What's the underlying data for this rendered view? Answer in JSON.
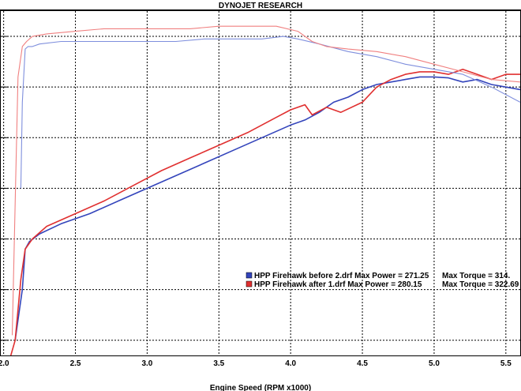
{
  "chart_data": {
    "type": "line",
    "title": "DYNOJET RESEARCH",
    "xlabel": "Engine Speed (RPM x1000)",
    "ylabel": "",
    "xlim": [
      1.98,
      5.6
    ],
    "ylim": [
      0,
      6.8
    ],
    "x_ticks": [
      2.0,
      2.5,
      3.0,
      3.5,
      4.0,
      4.5,
      5.0,
      5.5
    ],
    "x_tick_labels": [
      "2.0",
      "2.5",
      "3.0",
      "3.5",
      "4.0",
      "4.5",
      "5.0",
      "5.5"
    ],
    "y_gridlines": [
      0.3,
      1.3,
      2.3,
      3.3,
      4.3,
      5.3,
      6.3
    ],
    "grid": true,
    "legend_position": "bottom-right",
    "legend": [
      {
        "color": "#3344bb",
        "text": "HPP Firehawk before 2.drf Max Power = 271.25",
        "torque_text": "Max Torque = 314."
      },
      {
        "color": "#e03030",
        "text": "HPP Firehawk after 1.drf Max Power = 280.15",
        "torque_text": "Max Torque = 322.69"
      }
    ],
    "series": [
      {
        "name": "HPP Firehawk before 2.drf (power)",
        "color": "#3344bb",
        "x": [
          2.08,
          2.1,
          2.13,
          2.15,
          2.18,
          2.25,
          2.4,
          2.6,
          2.8,
          3.0,
          3.2,
          3.4,
          3.6,
          3.8,
          4.0,
          4.1,
          4.2,
          4.3,
          4.4,
          4.5,
          4.6,
          4.7,
          4.8,
          4.9,
          5.0,
          5.1,
          5.2,
          5.3,
          5.4,
          5.5,
          5.6
        ],
        "y": [
          0.3,
          0.7,
          1.3,
          2.1,
          2.25,
          2.4,
          2.6,
          2.8,
          3.05,
          3.3,
          3.55,
          3.8,
          4.05,
          4.3,
          4.55,
          4.65,
          4.8,
          5.0,
          5.1,
          5.25,
          5.35,
          5.4,
          5.45,
          5.5,
          5.5,
          5.48,
          5.4,
          5.45,
          5.35,
          5.3,
          5.25
        ]
      },
      {
        "name": "HPP Firehawk after 1.drf (power)",
        "color": "#e03030",
        "x": [
          2.05,
          2.08,
          2.1,
          2.12,
          2.15,
          2.2,
          2.3,
          2.5,
          2.7,
          2.9,
          3.1,
          3.3,
          3.5,
          3.7,
          3.9,
          4.0,
          4.1,
          4.15,
          4.25,
          4.35,
          4.5,
          4.6,
          4.7,
          4.8,
          4.9,
          5.0,
          5.1,
          5.2,
          5.3,
          5.4,
          5.5,
          5.6
        ],
        "y": [
          0.0,
          0.3,
          0.9,
          1.5,
          2.1,
          2.3,
          2.55,
          2.8,
          3.05,
          3.35,
          3.65,
          3.9,
          4.15,
          4.4,
          4.7,
          4.85,
          4.95,
          4.75,
          4.9,
          4.8,
          5.0,
          5.3,
          5.45,
          5.55,
          5.6,
          5.6,
          5.55,
          5.65,
          5.55,
          5.45,
          5.55,
          5.55
        ]
      },
      {
        "name": "HPP Firehawk before 2.drf (torque)",
        "color": "#7f8fdd",
        "x": [
          2.12,
          2.13,
          2.15,
          2.17,
          2.2,
          2.25,
          2.4,
          2.6,
          2.8,
          3.0,
          3.2,
          3.4,
          3.6,
          3.8,
          3.95,
          4.05,
          4.2,
          4.4,
          4.6,
          4.8,
          5.0,
          5.2,
          5.4,
          5.6
        ],
        "y": [
          3.3,
          5.0,
          6.05,
          6.1,
          6.1,
          6.15,
          6.2,
          6.2,
          6.2,
          6.2,
          6.2,
          6.25,
          6.25,
          6.25,
          6.3,
          6.25,
          6.15,
          6.0,
          5.9,
          5.75,
          5.65,
          5.55,
          5.3,
          5.0
        ]
      },
      {
        "name": "HPP Firehawk after 1.drf (torque)",
        "color": "#f08080",
        "x": [
          2.06,
          2.08,
          2.1,
          2.13,
          2.16,
          2.2,
          2.3,
          2.5,
          2.7,
          2.9,
          3.1,
          3.3,
          3.5,
          3.7,
          3.9,
          4.05,
          4.15,
          4.25,
          4.4,
          4.6,
          4.8,
          5.0,
          5.2,
          5.4,
          5.6
        ],
        "y": [
          0.4,
          3.0,
          5.5,
          6.1,
          6.2,
          6.3,
          6.35,
          6.4,
          6.45,
          6.45,
          6.45,
          6.45,
          6.5,
          6.5,
          6.5,
          6.4,
          6.2,
          6.1,
          6.05,
          6.0,
          5.9,
          5.75,
          5.6,
          5.45,
          5.4
        ]
      }
    ]
  }
}
